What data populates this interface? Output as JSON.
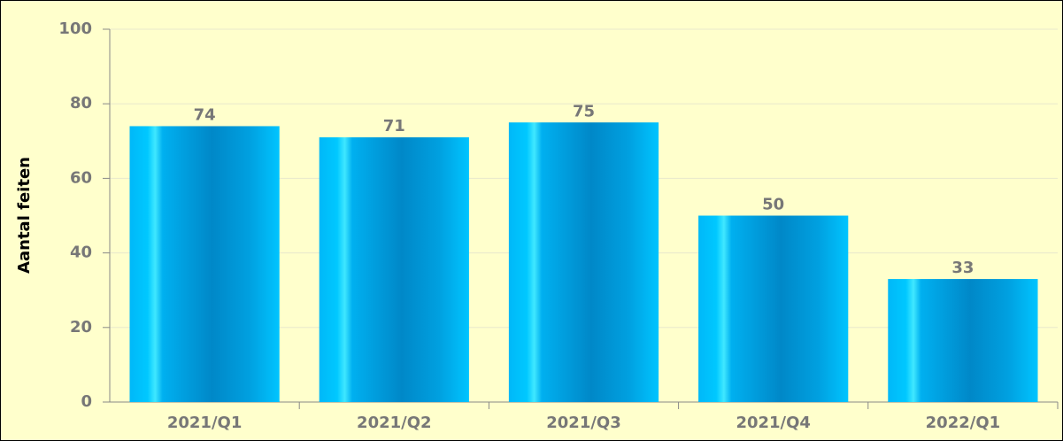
{
  "chart_data": {
    "type": "bar",
    "y_label": "Aantal feiten",
    "categories": [
      "2021/Q1",
      "2021/Q2",
      "2021/Q3",
      "2021/Q4",
      "2022/Q1"
    ],
    "values": [
      74,
      71,
      75,
      50,
      33
    ],
    "color": "#0088c8",
    "ylim": [
      0,
      100
    ],
    "yticks": [
      0,
      20,
      40,
      60,
      80,
      100
    ],
    "grid": true
  }
}
